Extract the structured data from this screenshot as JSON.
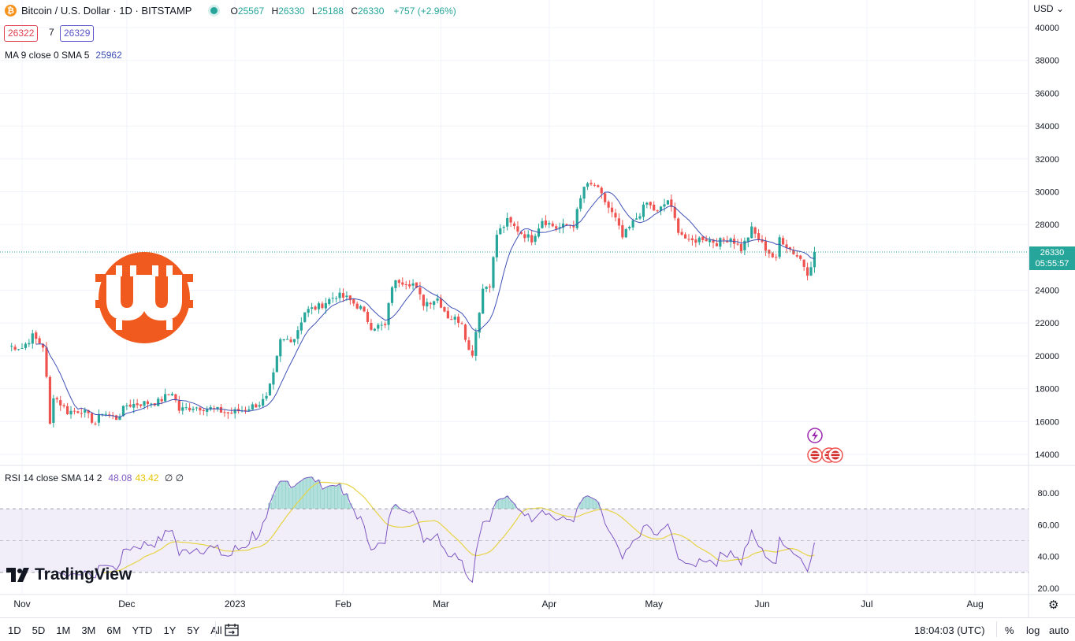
{
  "header": {
    "coin_symbol": "₿",
    "title": "Bitcoin / U.S. Dollar · 1D · BITSTAMP",
    "o_label": "O",
    "o_value": "25567",
    "h_label": "H",
    "h_value": "26330",
    "l_label": "L",
    "l_value": "25188",
    "c_label": "C",
    "c_value": "26330",
    "change": "+757 (+2.96%)",
    "bid": "26322",
    "spread": "7",
    "ask": "26329"
  },
  "currency": "USD",
  "ma_legend": {
    "label": "MA 9 close 0 SMA 5",
    "value": "25962"
  },
  "rsi_legend": {
    "label": "RSI 14 close SMA 14 2",
    "rsi": "48.08",
    "sma": "43.42",
    "extra": "∅ ∅"
  },
  "price_tag": {
    "price": "26330",
    "countdown": "05:55:57"
  },
  "watermark": "TradingView",
  "bottom_bar": {
    "ranges": [
      "1D",
      "5D",
      "1M",
      "3M",
      "6M",
      "YTD",
      "1Y",
      "5Y",
      "All"
    ],
    "clock": "18:04:03 (UTC)",
    "percent": "%",
    "log": "log",
    "auto": "auto"
  },
  "colors": {
    "up": "#26a69a",
    "down": "#ef5350",
    "ma": "#3f51b5",
    "rsi": "#7e57c2",
    "rsi_ma": "#e6d445",
    "logo": "#f05a1e"
  },
  "chart_data": {
    "type": "candlestick",
    "price_axis": {
      "ticks": [
        "14000",
        "16000",
        "18000",
        "20000",
        "22000",
        "24000",
        "26000",
        "28000",
        "30000",
        "32000",
        "34000",
        "36000",
        "38000",
        "40000"
      ]
    },
    "rsi_axis": {
      "ticks": [
        "20.00",
        "40.00",
        "60.00",
        "80.00"
      ],
      "bands": [
        30,
        50,
        70
      ]
    },
    "x_axis": {
      "labels": [
        "Nov",
        "Dec",
        "2023",
        "Feb",
        "Mar",
        "Apr",
        "May",
        "Jun",
        "Jul",
        "Aug"
      ]
    },
    "last_price": 26330,
    "series": [
      {
        "date": "2022-10-28",
        "close": 20600
      },
      {
        "date": "2022-11-01",
        "close": 20500
      },
      {
        "date": "2022-11-04",
        "close": 21200
      },
      {
        "date": "2022-11-07",
        "close": 20600
      },
      {
        "date": "2022-11-08",
        "close": 18600
      },
      {
        "date": "2022-11-09",
        "close": 15800
      },
      {
        "date": "2022-11-10",
        "close": 17600
      },
      {
        "date": "2022-11-14",
        "close": 16600
      },
      {
        "date": "2022-11-18",
        "close": 16700
      },
      {
        "date": "2022-11-22",
        "close": 15900
      },
      {
        "date": "2022-11-24",
        "close": 16600
      },
      {
        "date": "2022-11-28",
        "close": 16200
      },
      {
        "date": "2022-12-01",
        "close": 17000
      },
      {
        "date": "2022-12-05",
        "close": 17100
      },
      {
        "date": "2022-12-10",
        "close": 17200
      },
      {
        "date": "2022-12-14",
        "close": 17800
      },
      {
        "date": "2022-12-16",
        "close": 16700
      },
      {
        "date": "2022-12-20",
        "close": 16900
      },
      {
        "date": "2022-12-25",
        "close": 16800
      },
      {
        "date": "2022-12-30",
        "close": 16500
      },
      {
        "date": "2023-01-03",
        "close": 16700
      },
      {
        "date": "2023-01-08",
        "close": 17100
      },
      {
        "date": "2023-01-10",
        "close": 17400
      },
      {
        "date": "2023-01-12",
        "close": 18800
      },
      {
        "date": "2023-01-14",
        "close": 20900
      },
      {
        "date": "2023-01-18",
        "close": 21100
      },
      {
        "date": "2023-01-21",
        "close": 22700
      },
      {
        "date": "2023-01-25",
        "close": 23000
      },
      {
        "date": "2023-01-30",
        "close": 23700
      },
      {
        "date": "2023-02-02",
        "close": 23500
      },
      {
        "date": "2023-02-06",
        "close": 22900
      },
      {
        "date": "2023-02-09",
        "close": 21800
      },
      {
        "date": "2023-02-13",
        "close": 21800
      },
      {
        "date": "2023-02-15",
        "close": 24300
      },
      {
        "date": "2023-02-17",
        "close": 24600
      },
      {
        "date": "2023-02-21",
        "close": 24400
      },
      {
        "date": "2023-02-24",
        "close": 23200
      },
      {
        "date": "2023-02-28",
        "close": 23500
      },
      {
        "date": "2023-03-03",
        "close": 22400
      },
      {
        "date": "2023-03-07",
        "close": 22100
      },
      {
        "date": "2023-03-09",
        "close": 20300
      },
      {
        "date": "2023-03-10",
        "close": 20200
      },
      {
        "date": "2023-03-13",
        "close": 24100
      },
      {
        "date": "2023-03-15",
        "close": 24400
      },
      {
        "date": "2023-03-17",
        "close": 27400
      },
      {
        "date": "2023-03-20",
        "close": 28200
      },
      {
        "date": "2023-03-24",
        "close": 27500
      },
      {
        "date": "2023-03-27",
        "close": 27100
      },
      {
        "date": "2023-03-30",
        "close": 28300
      },
      {
        "date": "2023-04-03",
        "close": 27800
      },
      {
        "date": "2023-04-08",
        "close": 28000
      },
      {
        "date": "2023-04-11",
        "close": 30300
      },
      {
        "date": "2023-04-14",
        "close": 30400
      },
      {
        "date": "2023-04-17",
        "close": 29400
      },
      {
        "date": "2023-04-20",
        "close": 28300
      },
      {
        "date": "2023-04-22",
        "close": 27200
      },
      {
        "date": "2023-04-26",
        "close": 28400
      },
      {
        "date": "2023-04-29",
        "close": 29300
      },
      {
        "date": "2023-05-02",
        "close": 28700
      },
      {
        "date": "2023-05-05",
        "close": 29500
      },
      {
        "date": "2023-05-08",
        "close": 27700
      },
      {
        "date": "2023-05-11",
        "close": 26900
      },
      {
        "date": "2023-05-15",
        "close": 27200
      },
      {
        "date": "2023-05-19",
        "close": 26900
      },
      {
        "date": "2023-05-23",
        "close": 27200
      },
      {
        "date": "2023-05-26",
        "close": 26500
      },
      {
        "date": "2023-05-29",
        "close": 27700
      },
      {
        "date": "2023-06-01",
        "close": 26800
      },
      {
        "date": "2023-06-05",
        "close": 25800
      },
      {
        "date": "2023-06-06",
        "close": 27200
      },
      {
        "date": "2023-06-09",
        "close": 26500
      },
      {
        "date": "2023-06-12",
        "close": 25900
      },
      {
        "date": "2023-06-14",
        "close": 25100
      },
      {
        "date": "2023-06-15",
        "close": 25600
      },
      {
        "date": "2023-06-16",
        "close": 26330
      }
    ]
  }
}
